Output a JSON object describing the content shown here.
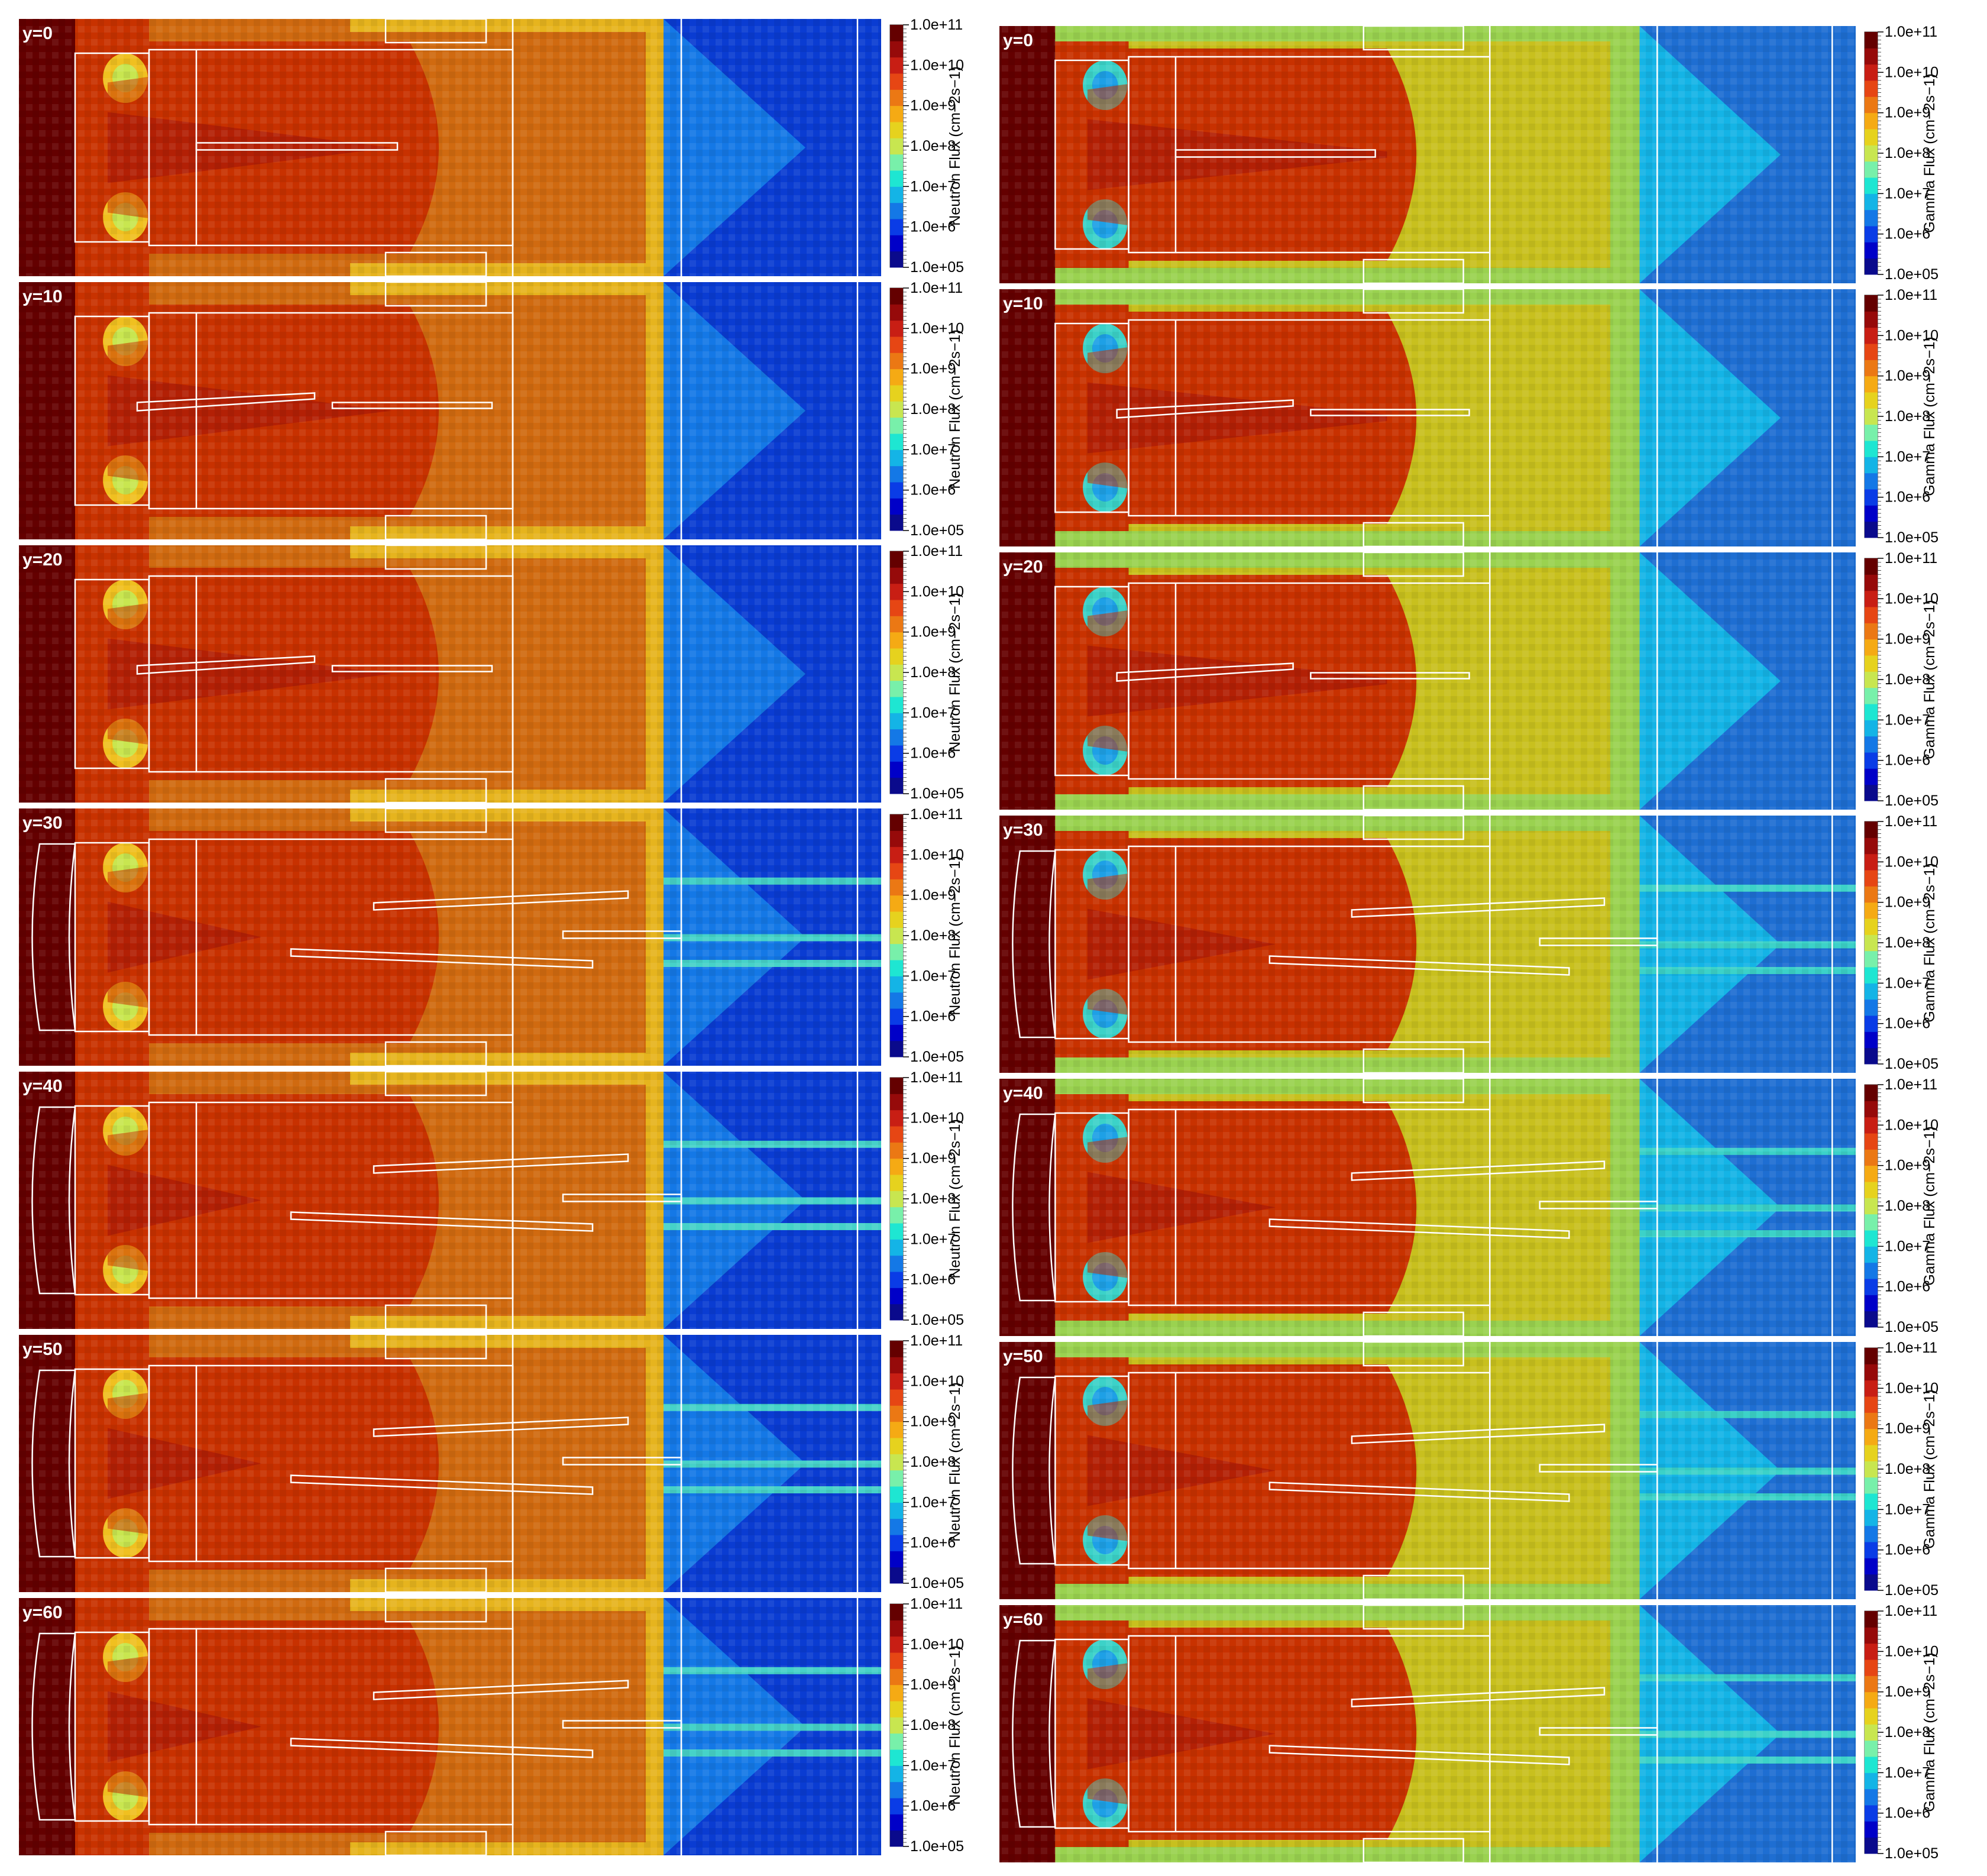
{
  "figure": {
    "columns": [
      {
        "quantity": "Neutron Flux"
      },
      {
        "quantity": "Gamma Flux"
      }
    ],
    "rows": [
      {
        "label": "y=0"
      },
      {
        "label": "y=10"
      },
      {
        "label": "y=20"
      },
      {
        "label": "y=30"
      },
      {
        "label": "y=40"
      },
      {
        "label": "y=50"
      },
      {
        "label": "y=60"
      }
    ]
  },
  "chart_data": {
    "type": "heatmap",
    "title": "",
    "scale": "log",
    "value_range": [
      100000,
      100000000000
    ],
    "panels_per_row": 2,
    "colorbar": {
      "tick_values": [
        100000,
        1000000,
        10000000,
        100000000,
        1000000000,
        10000000000,
        100000000000
      ],
      "tick_labels": [
        "1.0e+05",
        "1.0e+6",
        "1.0e+7",
        "1.0e+8",
        "1.0e+9",
        "1.0e+10",
        "1.0e+11"
      ],
      "neutron_title": "Neutron Flux (cm−2s−1)",
      "gamma_title": "Gamma Flux (cm−2s−1)",
      "colors": [
        "#0a0a8c",
        "#0000c8",
        "#0a3ce6",
        "#1478e6",
        "#14b4e6",
        "#1ee6d2",
        "#78f0aa",
        "#c8e650",
        "#e6d21e",
        "#f5aa14",
        "#eb7814",
        "#e64614",
        "#c81e14",
        "#960a0a",
        "#640000"
      ]
    },
    "slices": [
      "y=0",
      "y=10",
      "y=20",
      "y=30",
      "y=40",
      "y=50",
      "y=60"
    ]
  }
}
